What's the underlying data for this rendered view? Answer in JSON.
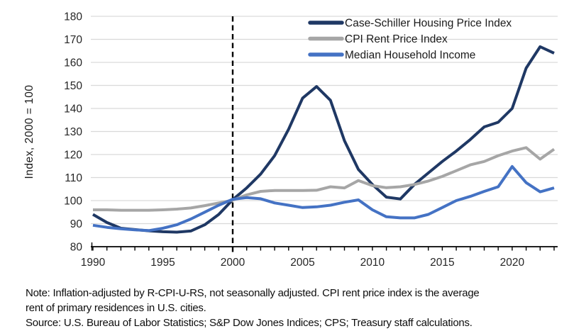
{
  "chart_data": {
    "type": "line",
    "title": "",
    "xlabel": "",
    "ylabel": "Index, 2000 = 100",
    "x": [
      1990,
      1991,
      1992,
      1993,
      1994,
      1995,
      1996,
      1997,
      1998,
      1999,
      2000,
      2001,
      2002,
      2003,
      2004,
      2005,
      2006,
      2007,
      2008,
      2009,
      2010,
      2011,
      2012,
      2013,
      2014,
      2015,
      2016,
      2017,
      2018,
      2019,
      2020,
      2021,
      2022,
      2023
    ],
    "series": [
      {
        "name": "Case-Schiller Housing Price Index",
        "color": "#1f3864",
        "values": [
          94,
          90.5,
          88,
          87.4,
          86.9,
          86.5,
          86.3,
          86.8,
          89.5,
          94,
          100.4,
          105.5,
          111.5,
          119.5,
          131,
          144.5,
          149.5,
          143.5,
          126,
          113.5,
          107,
          101.5,
          100.7,
          107,
          112,
          117,
          121.5,
          126.5,
          132,
          134,
          140,
          157.5,
          166.8,
          164
        ]
      },
      {
        "name": "CPI Rent Price Index",
        "color": "#a6a6a6",
        "values": [
          96,
          96,
          95.8,
          95.8,
          95.8,
          96,
          96.3,
          96.8,
          97.8,
          99,
          100.2,
          102.5,
          104,
          104.4,
          104.4,
          104.4,
          104.5,
          106,
          105.5,
          108.7,
          106.5,
          105.6,
          106,
          107,
          108.5,
          110.5,
          113,
          115.5,
          117,
          119.5,
          121.5,
          123,
          118,
          122.3
        ]
      },
      {
        "name": "Median Household Income",
        "color": "#4472c4",
        "values": [
          89.3,
          88.4,
          87.8,
          87.3,
          87,
          88,
          89.5,
          92,
          95,
          98,
          100.6,
          101.3,
          100.8,
          99,
          98,
          97,
          97.3,
          98,
          99.3,
          100.3,
          96,
          93,
          92.5,
          92.5,
          94,
          97,
          100,
          101.8,
          104,
          106,
          114.8,
          107.8,
          103.8,
          105.5
        ]
      }
    ],
    "xlim": [
      1990,
      2023
    ],
    "ylim": [
      80,
      180
    ],
    "yticks": [
      80,
      90,
      100,
      110,
      120,
      130,
      140,
      150,
      160,
      170,
      180
    ],
    "xticks": [
      1990,
      1995,
      2000,
      2005,
      2010,
      2015,
      2020
    ],
    "grid": "horizontal",
    "legend_position": "top-right",
    "refline": {
      "x": 2000,
      "style": "dashed",
      "color": "#000000"
    },
    "colors": {
      "grid": "#d9d9d9",
      "axis": "#000000",
      "tick_label": "#262626"
    }
  },
  "notes": {
    "line1": "Note: Inflation-adjusted by R-CPI-U-RS, not seasonally adjusted. CPI rent price index is the average",
    "line2": "rent of primary residences in U.S. cities.",
    "line3": "Source: U.S. Bureau of Labor Statistics; S&P Dow Jones Indices; CPS; Treasury staff calculations."
  }
}
